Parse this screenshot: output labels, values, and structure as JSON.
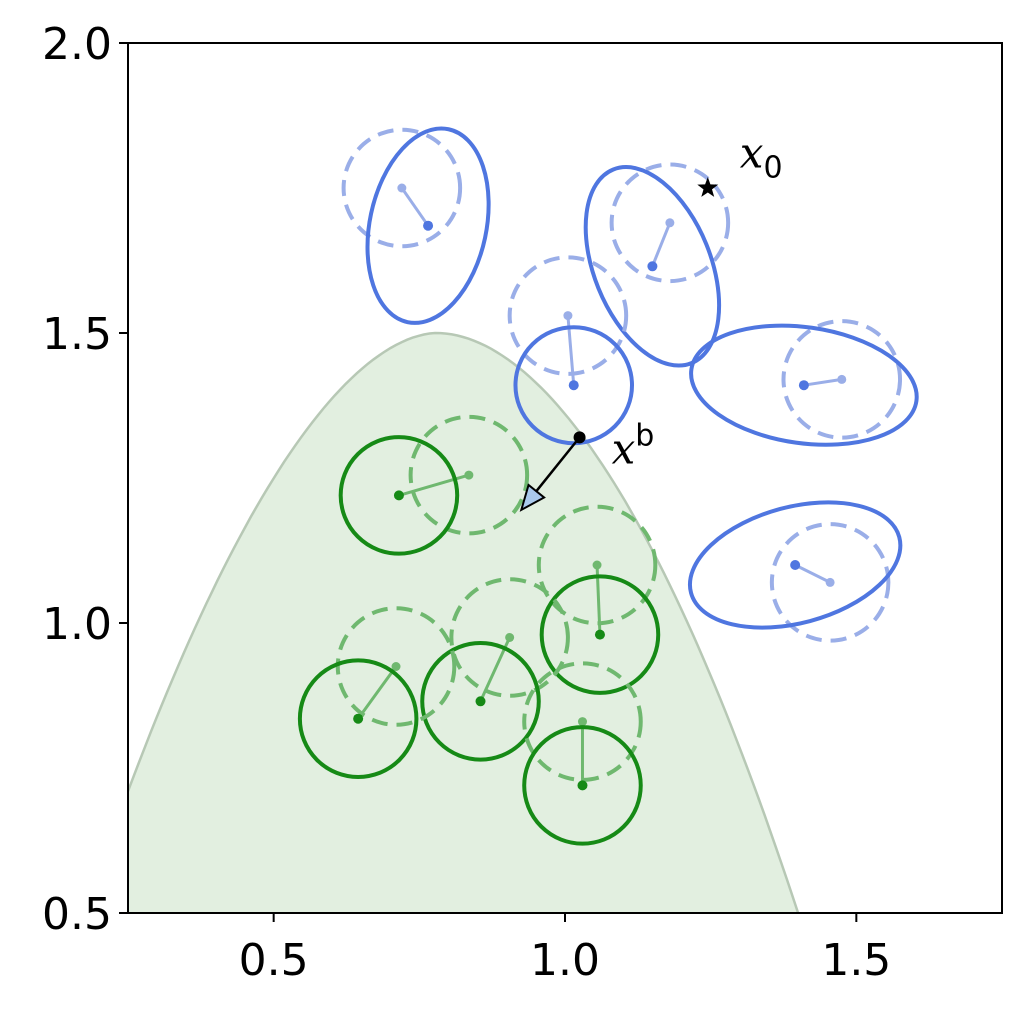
{
  "chart_data": {
    "type": "scatter",
    "title": "",
    "xlabel": "",
    "ylabel": "",
    "xlim": [
      0.25,
      1.75
    ],
    "ylim": [
      0.5,
      2.0
    ],
    "xticks": [
      0.5,
      1.0,
      1.5
    ],
    "xtick_labels": [
      "0.5",
      "1.0",
      "1.5"
    ],
    "yticks": [
      0.5,
      1.0,
      1.5,
      2.0
    ],
    "ytick_labels": [
      "0.5",
      "1.0",
      "1.5",
      "2.0"
    ],
    "grid": false,
    "colors": {
      "green": "#168a16",
      "green_light": "#6fb86f",
      "blue": "#4f76e0",
      "blue_light": "#9aaee8",
      "region_fill": "#e2efe0",
      "region_edge": "#b7c8b5",
      "arrow_fill": "#aac9ec"
    },
    "region": {
      "label": "",
      "peak_x": 0.78,
      "peak_y": 1.5,
      "left_x_at_bottom": 0.25,
      "left_y_at_xmin": 0.71,
      "right_x_at_bottom": 1.4
    },
    "green_pairs": [
      {
        "from": [
          0.835,
          1.255
        ],
        "to": [
          0.715,
          1.22
        ],
        "r": 0.1
      },
      {
        "from": [
          1.055,
          1.1
        ],
        "to": [
          1.06,
          0.98
        ],
        "r": 0.1
      },
      {
        "from": [
          0.905,
          0.975
        ],
        "to": [
          0.855,
          0.865
        ],
        "r": 0.1
      },
      {
        "from": [
          0.71,
          0.925
        ],
        "to": [
          0.645,
          0.835
        ],
        "r": 0.1
      },
      {
        "from": [
          1.03,
          0.83
        ],
        "to": [
          1.03,
          0.72
        ],
        "r": 0.1
      }
    ],
    "blue_pairs": [
      {
        "from_center": [
          0.72,
          1.75
        ],
        "from_r": 0.1,
        "to_center": [
          0.765,
          1.685
        ],
        "to_rx": 0.1,
        "to_ry": 0.17,
        "angle": 12
      },
      {
        "from_center": [
          1.18,
          1.69
        ],
        "from_r": 0.1,
        "to_center": [
          1.15,
          1.615
        ],
        "to_rx": 0.1,
        "to_ry": 0.18,
        "angle": -22
      },
      {
        "from_center": [
          1.005,
          1.53
        ],
        "from_r": 0.1,
        "to_center": [
          1.015,
          1.41
        ],
        "to_rx": 0.1,
        "to_ry": 0.1,
        "angle": 0
      },
      {
        "from_center": [
          1.475,
          1.42
        ],
        "from_r": 0.1,
        "to_center": [
          1.41,
          1.41
        ],
        "to_rx": 0.195,
        "to_ry": 0.1,
        "angle": 8
      },
      {
        "from_center": [
          1.455,
          1.07
        ],
        "from_r": 0.1,
        "to_center": [
          1.395,
          1.1
        ],
        "to_rx": 0.185,
        "to_ry": 0.1,
        "angle": -15
      }
    ],
    "x0": {
      "label": "x",
      "subscript": "0",
      "point": [
        1.245,
        1.75
      ],
      "label_at": [
        1.3,
        1.785
      ]
    },
    "xb": {
      "label": "x",
      "superscript": "b",
      "point": [
        1.025,
        1.32
      ],
      "arrow_to": [
        0.925,
        1.195
      ],
      "label_at": [
        1.08,
        1.275
      ]
    }
  }
}
